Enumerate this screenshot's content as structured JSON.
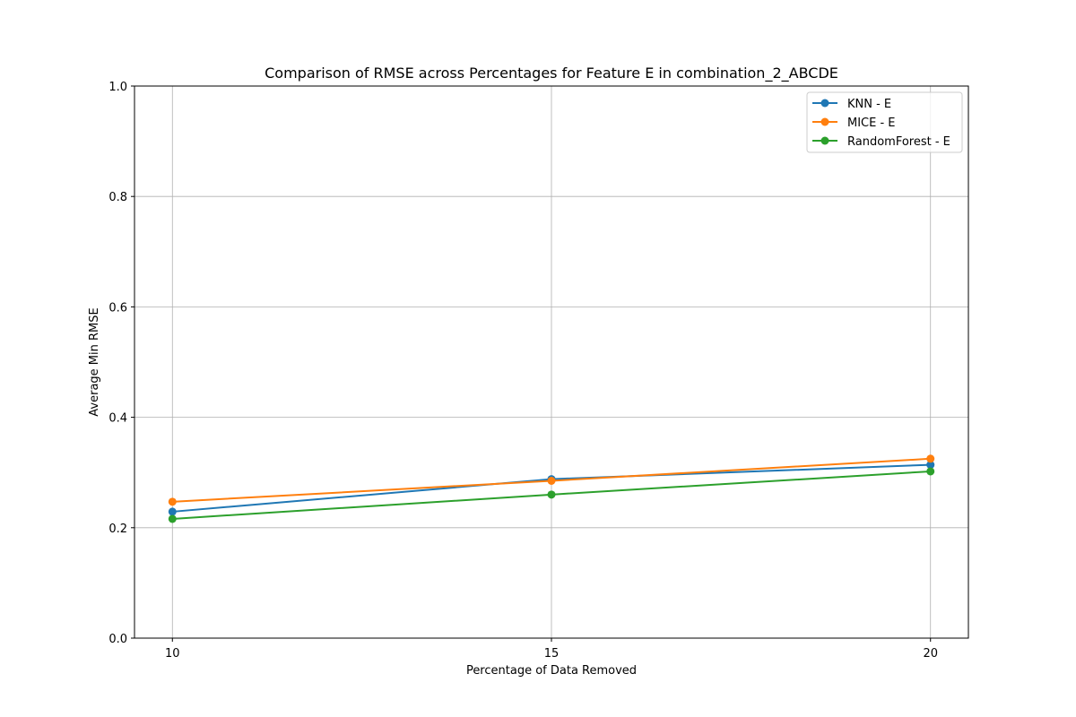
{
  "chart_data": {
    "type": "line",
    "title": "Comparison of RMSE across Percentages for Feature E in combination_2_ABCDE",
    "xlabel": "Percentage of Data Removed",
    "ylabel": "Average Min RMSE",
    "x": [
      10,
      15,
      20
    ],
    "x_ticks": [
      "10",
      "15",
      "20"
    ],
    "y_ticks": [
      "0.0",
      "0.2",
      "0.4",
      "0.6",
      "0.8",
      "1.0"
    ],
    "ylim": [
      0,
      1
    ],
    "grid": true,
    "legend_position": "top-right",
    "series": [
      {
        "name": "KNN - E",
        "color": "#1f77b4",
        "values": [
          0.229,
          0.288,
          0.314
        ]
      },
      {
        "name": "MICE - E",
        "color": "#ff7f0e",
        "values": [
          0.247,
          0.285,
          0.325
        ]
      },
      {
        "name": "RandomForest - E",
        "color": "#2ca02c",
        "values": [
          0.216,
          0.26,
          0.302
        ]
      }
    ]
  }
}
